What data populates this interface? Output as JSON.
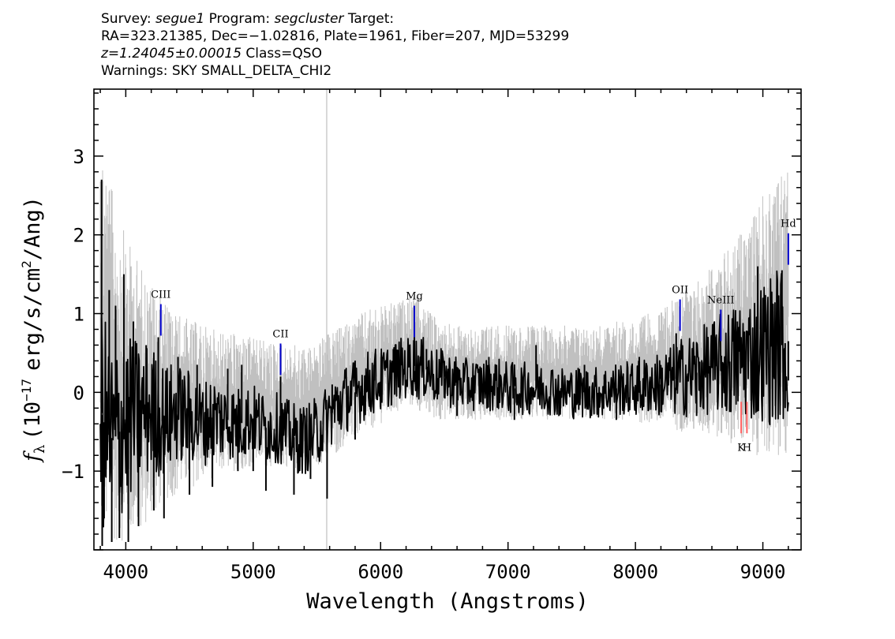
{
  "header": {
    "survey_label": "Survey:",
    "survey": "segue1",
    "program_label": "Program:",
    "program": "segcluster",
    "target_label": "Target:",
    "line2": "RA=323.21385, Dec=−1.02816, Plate=1961, Fiber=207, MJD=53299",
    "z_text": "z=1.24045±0.00015",
    "class_text": "Class=QSO",
    "warnings": "Warnings: SKY SMALL_DELTA_CHI2"
  },
  "chart_data": {
    "type": "line",
    "title": "",
    "xlabel": "Wavelength (Angstroms)",
    "ylabel": "f_λ (10^-17 erg/s/cm^2/Ang)",
    "ylabel_parts": {
      "f": "f",
      "sub": "λ",
      "pre": "(10",
      "exp1": "−17",
      "mid": "erg/s/cm",
      "exp2": "2",
      "post": "/Ang)"
    },
    "xlim": [
      3750,
      9300
    ],
    "ylim": [
      -2.0,
      3.85
    ],
    "xticks": [
      4000,
      5000,
      6000,
      7000,
      8000,
      9000
    ],
    "xtick_labels": [
      "4000",
      "5000",
      "6000",
      "7000",
      "8000",
      "9000"
    ],
    "yticks": [
      -1,
      0,
      1,
      2,
      3
    ],
    "ytick_labels": [
      "−1",
      "0",
      "1",
      "2",
      "3"
    ],
    "grid": false,
    "series": [
      {
        "role": "noise",
        "color": "#c0c0c0",
        "x": [
          3800,
          3850,
          3900,
          3950,
          4000,
          4050,
          4100,
          4150,
          4200,
          4250,
          4300,
          4350,
          4400,
          4450,
          4500,
          4550,
          4600,
          4650,
          4700,
          4750,
          4800,
          4850,
          4900,
          4950,
          5000,
          5050,
          5100,
          5150,
          5200,
          5250,
          5300,
          5350,
          5400,
          5450,
          5500,
          5550,
          5600,
          5650,
          5700,
          5750,
          5800,
          5850,
          5900,
          5950,
          6000,
          6050,
          6100,
          6150,
          6200,
          6250,
          6300,
          6350,
          6400,
          6450,
          6500,
          6550,
          6600,
          6650,
          6700,
          6750,
          6800,
          6850,
          6900,
          6950,
          7000,
          7050,
          7100,
          7150,
          7200,
          7250,
          7300,
          7350,
          7400,
          7450,
          7500,
          7550,
          7600,
          7650,
          7700,
          7750,
          7800,
          7850,
          7900,
          7950,
          8000,
          8050,
          8100,
          8150,
          8200,
          8250,
          8300,
          8350,
          8400,
          8450,
          8500,
          8550,
          8600,
          8650,
          8700,
          8750,
          8800,
          8850,
          8900,
          8950,
          9000,
          9050,
          9100,
          9150,
          9200
        ],
        "y_low": [
          -1.9,
          -1.9,
          -1.9,
          -1.9,
          -1.9,
          -1.85,
          -1.8,
          -1.7,
          -1.6,
          -1.5,
          -1.4,
          -1.35,
          -1.3,
          -1.25,
          -1.2,
          -1.2,
          -1.15,
          -1.1,
          -1.1,
          -1.05,
          -1.0,
          -1.0,
          -1.0,
          -0.95,
          -0.95,
          -0.95,
          -0.95,
          -0.95,
          -0.95,
          -0.95,
          -0.95,
          -1.0,
          -1.0,
          -1.0,
          -0.95,
          -0.9,
          -0.85,
          -0.8,
          -0.7,
          -0.65,
          -0.6,
          -0.55,
          -0.5,
          -0.45,
          -0.4,
          -0.35,
          -0.3,
          -0.25,
          -0.2,
          -0.2,
          -0.25,
          -0.3,
          -0.35,
          -0.35,
          -0.35,
          -0.35,
          -0.35,
          -0.35,
          -0.35,
          -0.35,
          -0.35,
          -0.35,
          -0.35,
          -0.35,
          -0.35,
          -0.35,
          -0.35,
          -0.35,
          -0.35,
          -0.35,
          -0.35,
          -0.35,
          -0.35,
          -0.35,
          -0.35,
          -0.35,
          -0.35,
          -0.35,
          -0.35,
          -0.35,
          -0.35,
          -0.35,
          -0.35,
          -0.35,
          -0.35,
          -0.4,
          -0.4,
          -0.4,
          -0.45,
          -0.45,
          -0.5,
          -0.5,
          -0.5,
          -0.55,
          -0.55,
          -0.55,
          -0.6,
          -0.6,
          -0.6,
          -0.65,
          -0.7,
          -0.7,
          -0.75,
          -0.8,
          -0.8,
          -0.85,
          -0.9,
          -0.9,
          -0.9
        ],
        "y_high": [
          3.5,
          3.0,
          2.5,
          2.2,
          2.0,
          1.8,
          1.7,
          1.5,
          1.4,
          1.3,
          1.2,
          1.1,
          1.0,
          1.0,
          0.9,
          0.9,
          0.85,
          0.85,
          0.8,
          0.8,
          0.75,
          0.75,
          0.75,
          0.7,
          0.7,
          0.7,
          0.65,
          0.65,
          0.65,
          0.6,
          0.6,
          0.6,
          0.6,
          0.6,
          0.65,
          0.7,
          0.75,
          0.8,
          0.85,
          0.9,
          0.95,
          1.0,
          1.05,
          1.1,
          1.1,
          1.1,
          1.15,
          1.15,
          1.2,
          1.25,
          1.2,
          1.1,
          1.0,
          0.95,
          0.9,
          0.9,
          0.85,
          0.85,
          0.85,
          0.85,
          0.85,
          0.85,
          0.85,
          0.85,
          0.85,
          0.85,
          0.85,
          0.85,
          0.85,
          0.85,
          0.85,
          0.85,
          0.85,
          0.85,
          0.85,
          0.85,
          0.85,
          0.85,
          0.85,
          0.85,
          0.85,
          0.9,
          0.9,
          0.9,
          0.9,
          0.95,
          1.0,
          1.0,
          1.05,
          1.1,
          1.2,
          1.3,
          1.35,
          1.4,
          1.45,
          1.5,
          1.6,
          1.7,
          1.8,
          1.9,
          2.0,
          2.1,
          2.2,
          2.4,
          2.5,
          2.6,
          2.7,
          2.8,
          2.9
        ]
      },
      {
        "role": "flux",
        "color": "#000000",
        "x": [
          3800,
          3850,
          3900,
          3950,
          4000,
          4050,
          4100,
          4150,
          4200,
          4250,
          4300,
          4350,
          4400,
          4450,
          4500,
          4550,
          4600,
          4650,
          4700,
          4750,
          4800,
          4850,
          4900,
          4950,
          5000,
          5050,
          5100,
          5150,
          5200,
          5250,
          5300,
          5350,
          5400,
          5450,
          5500,
          5550,
          5600,
          5650,
          5700,
          5750,
          5800,
          5850,
          5900,
          5950,
          6000,
          6050,
          6100,
          6150,
          6200,
          6250,
          6300,
          6350,
          6400,
          6450,
          6500,
          6550,
          6600,
          6650,
          6700,
          6750,
          6800,
          6850,
          6900,
          6950,
          7000,
          7050,
          7100,
          7150,
          7200,
          7250,
          7300,
          7350,
          7400,
          7450,
          7500,
          7550,
          7600,
          7650,
          7700,
          7750,
          7800,
          7850,
          7900,
          7950,
          8000,
          8050,
          8100,
          8150,
          8200,
          8250,
          8300,
          8350,
          8400,
          8450,
          8500,
          8550,
          8600,
          8650,
          8700,
          8750,
          8800,
          8850,
          8900,
          8950,
          9000,
          9050,
          9100,
          9150,
          9200
        ],
        "y": [
          -0.2,
          -0.5,
          -0.6,
          -0.5,
          -0.4,
          -0.3,
          -0.3,
          -0.25,
          -0.2,
          -0.3,
          -0.35,
          -0.3,
          -0.25,
          -0.3,
          -0.3,
          -0.35,
          -0.4,
          -0.35,
          -0.3,
          -0.35,
          -0.35,
          -0.4,
          -0.4,
          -0.35,
          -0.35,
          -0.4,
          -0.45,
          -0.45,
          -0.45,
          -0.5,
          -0.55,
          -0.6,
          -0.6,
          -0.55,
          -0.5,
          -0.4,
          -0.3,
          -0.2,
          -0.1,
          -0.05,
          0.0,
          0.05,
          0.1,
          0.15,
          0.15,
          0.2,
          0.25,
          0.3,
          0.3,
          0.35,
          0.3,
          0.3,
          0.25,
          0.2,
          0.2,
          0.15,
          0.15,
          0.1,
          0.1,
          0.1,
          0.1,
          0.1,
          0.1,
          0.1,
          0.05,
          0.05,
          0.05,
          0.05,
          0.05,
          0.05,
          0.05,
          0.05,
          0.0,
          0.0,
          0.0,
          0.0,
          0.0,
          0.0,
          0.0,
          0.0,
          0.05,
          0.05,
          0.05,
          0.05,
          0.05,
          0.05,
          0.1,
          0.1,
          0.1,
          0.15,
          0.15,
          0.2,
          0.2,
          0.25,
          0.25,
          0.3,
          0.3,
          0.35,
          0.35,
          0.4,
          0.4,
          0.45,
          0.45,
          0.5,
          0.55,
          0.55,
          0.6,
          0.6,
          0.65
        ],
        "spikes": [
          {
            "x": 3810,
            "y": 2.7
          },
          {
            "x": 3815,
            "y": -1.95
          },
          {
            "x": 3830,
            "y": -1.6
          },
          {
            "x": 3870,
            "y": 1.3
          },
          {
            "x": 3890,
            "y": -1.9
          },
          {
            "x": 3920,
            "y": 1.1
          },
          {
            "x": 3950,
            "y": -1.85
          },
          {
            "x": 3985,
            "y": 1.5
          },
          {
            "x": 4020,
            "y": -1.9
          },
          {
            "x": 4060,
            "y": 0.9
          },
          {
            "x": 4100,
            "y": -1.7
          },
          {
            "x": 4160,
            "y": 0.6
          },
          {
            "x": 4220,
            "y": -1.5
          },
          {
            "x": 4255,
            "y": 0.7
          },
          {
            "x": 4300,
            "y": -1.6
          },
          {
            "x": 4410,
            "y": 0.45
          },
          {
            "x": 4500,
            "y": -1.3
          },
          {
            "x": 4560,
            "y": 0.35
          },
          {
            "x": 4680,
            "y": -1.2
          },
          {
            "x": 4800,
            "y": 0.3
          },
          {
            "x": 4880,
            "y": -1.0
          },
          {
            "x": 4910,
            "y": 0.35
          },
          {
            "x": 5000,
            "y": -1.0
          },
          {
            "x": 5100,
            "y": -1.25
          },
          {
            "x": 5215,
            "y": 0.2
          },
          {
            "x": 5320,
            "y": -1.3
          },
          {
            "x": 5450,
            "y": -1.1
          },
          {
            "x": 5580,
            "y": -1.35
          },
          {
            "x": 5620,
            "y": 0.1
          },
          {
            "x": 5800,
            "y": -0.6
          },
          {
            "x": 5950,
            "y": 0.35
          },
          {
            "x": 6100,
            "y": 0.55
          },
          {
            "x": 6220,
            "y": 0.6
          },
          {
            "x": 6265,
            "y": 0.7
          },
          {
            "x": 6360,
            "y": 0.55
          },
          {
            "x": 6500,
            "y": 0.4
          },
          {
            "x": 6600,
            "y": -0.3
          },
          {
            "x": 6850,
            "y": 0.45
          },
          {
            "x": 7050,
            "y": -0.35
          },
          {
            "x": 7220,
            "y": 0.6
          },
          {
            "x": 7400,
            "y": -0.3
          },
          {
            "x": 7600,
            "y": 0.35
          },
          {
            "x": 7850,
            "y": -0.35
          },
          {
            "x": 8030,
            "y": 0.45
          },
          {
            "x": 8200,
            "y": -0.25
          },
          {
            "x": 8320,
            "y": 0.75
          },
          {
            "x": 8480,
            "y": -0.3
          },
          {
            "x": 8630,
            "y": 0.6
          },
          {
            "x": 8740,
            "y": -0.25
          },
          {
            "x": 8800,
            "y": 0.9
          },
          {
            "x": 8960,
            "y": 1.6
          },
          {
            "x": 9040,
            "y": 0.7
          },
          {
            "x": 9120,
            "y": 1.1
          },
          {
            "x": 9150,
            "y": 1.55
          },
          {
            "x": 9175,
            "y": -0.2
          },
          {
            "x": 9200,
            "y": 0.15
          }
        ]
      }
    ],
    "line_markers": [
      {
        "label": "CIII",
        "x": 4275,
        "y_bottom": 0.72,
        "y_top": 1.12,
        "color": "#0000cc"
      },
      {
        "label": "CII",
        "x": 5215,
        "y_bottom": 0.22,
        "y_top": 0.62,
        "color": "#0000cc"
      },
      {
        "label": "Mg",
        "x": 6265,
        "y_bottom": 0.7,
        "y_top": 1.1,
        "color": "#0000cc"
      },
      {
        "label": "OII",
        "x": 8350,
        "y_bottom": 0.78,
        "y_top": 1.18,
        "color": "#0000cc"
      },
      {
        "label": "NeIII",
        "x": 8670,
        "y_bottom": 0.65,
        "y_top": 1.05,
        "color": "#0000cc"
      },
      {
        "label": "Hd",
        "x": 9200,
        "y_bottom": 1.62,
        "y_top": 2.02,
        "color": "#0000cc"
      },
      {
        "label": "K",
        "x": 8830,
        "y_bottom": -0.52,
        "y_top": -0.12,
        "color": "#ff6060"
      },
      {
        "label": "H",
        "x": 8875,
        "y_bottom": -0.52,
        "y_top": -0.12,
        "color": "#ff6060"
      }
    ]
  }
}
